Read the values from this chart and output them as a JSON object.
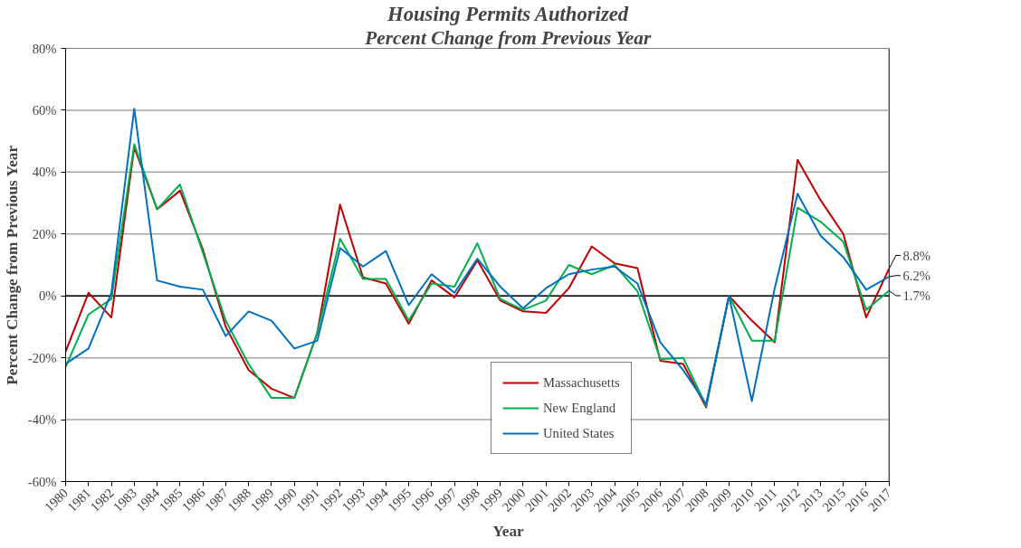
{
  "chart_data": {
    "type": "line",
    "title": "Housing Permits Authorized",
    "subtitle": "Percent Change from Previous Year",
    "xlabel": "Year",
    "ylabel": "Percent Change from Previous Year",
    "categories": [
      "1980",
      "1981",
      "1982",
      "1983",
      "1984",
      "1985",
      "1986",
      "1987",
      "1988",
      "1989",
      "1990",
      "1991",
      "1992",
      "1993",
      "1994",
      "1995",
      "1996",
      "1997",
      "1998",
      "1999",
      "2000",
      "2001",
      "2002",
      "2003",
      "2004",
      "2005",
      "2006",
      "2007",
      "2008",
      "2009",
      "2010",
      "2011",
      "2012",
      "2013",
      "2015",
      "2016",
      "2017"
    ],
    "series": [
      {
        "name": "Massachusetts",
        "color": "#c00000",
        "values": [
          -18,
          1,
          -7,
          48,
          28,
          34,
          15,
          -10,
          -24,
          -30,
          -33,
          -12,
          29.5,
          6,
          4,
          -9,
          5,
          -0.5,
          11.5,
          -1.5,
          -5,
          -5.5,
          2.5,
          16,
          10.5,
          9,
          -21,
          -22,
          -36,
          0,
          -8,
          -15,
          44,
          31,
          20,
          -7,
          8.8
        ]
      },
      {
        "name": "New England",
        "color": "#00b050",
        "values": [
          -23,
          -6,
          -1,
          49,
          28,
          36,
          14,
          -8,
          -22,
          -33,
          -33,
          -12,
          18.5,
          5.5,
          5.5,
          -8,
          4,
          3,
          17,
          -1,
          -4.5,
          -1.5,
          10,
          7,
          10,
          1.5,
          -20.5,
          -20,
          -35.5,
          0,
          -14.5,
          -14.5,
          28.5,
          24,
          17.5,
          -4.5,
          1.7
        ]
      },
      {
        "name": "United States",
        "color": "#0070c0",
        "values": [
          -22,
          -17,
          1,
          60.5,
          5,
          3,
          2,
          -13,
          -5,
          -8,
          -17,
          -14.5,
          15.5,
          9.5,
          14.5,
          -3,
          7,
          1,
          12,
          3,
          -4,
          2.5,
          7,
          8.5,
          9.5,
          4,
          -15,
          -24,
          -35,
          0,
          -34,
          2.5,
          33,
          19.5,
          12.5,
          2,
          6.2
        ]
      }
    ],
    "ylim": [
      -60,
      80
    ],
    "yticks": [
      {
        "value": -60,
        "label": "-60%"
      },
      {
        "value": -40,
        "label": "-40%"
      },
      {
        "value": -20,
        "label": "-20%"
      },
      {
        "value": 0,
        "label": "0%"
      },
      {
        "value": 20,
        "label": "20%"
      },
      {
        "value": 40,
        "label": "40%"
      },
      {
        "value": 60,
        "label": "60%"
      },
      {
        "value": 80,
        "label": "80%"
      }
    ],
    "annotations": [
      {
        "text": "8.8%",
        "x": "2017",
        "y": 8.8
      },
      {
        "text": "6.2%",
        "x": "2017",
        "y": 6.2
      },
      {
        "text": "1.7%",
        "x": "2017",
        "y": 1.7
      }
    ],
    "grid": "y",
    "legend": "bottom",
    "marker": "none",
    "line_style": "solid"
  }
}
